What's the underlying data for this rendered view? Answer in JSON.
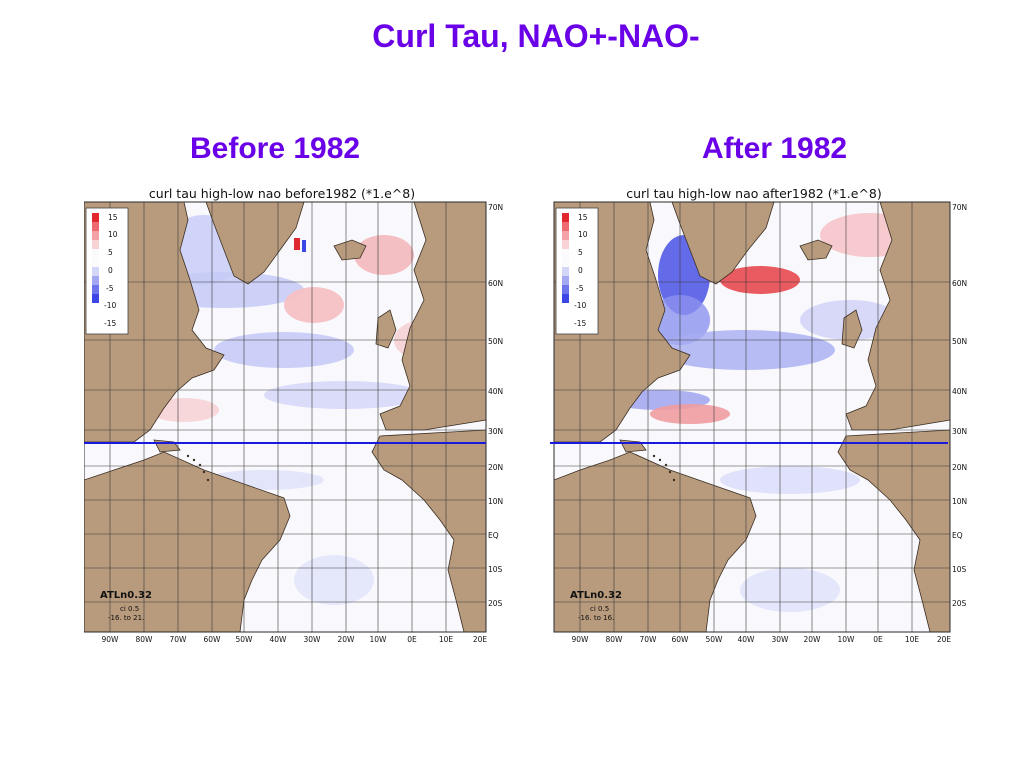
{
  "slide": {
    "title": "Curl Tau, NAO+-NAO-"
  },
  "panels": [
    {
      "heading": "Before 1982",
      "map_title": "curl tau high-low nao before1982 (*1.e^8)",
      "legend": [
        "15",
        "10",
        "5",
        "0",
        "-5",
        "-10",
        "-15"
      ],
      "model_label": "ATLn0.32",
      "contour_interval": "ci 0.5",
      "range": "-16. to 21."
    },
    {
      "heading": "After 1982",
      "map_title": "curl tau high-low nao after1982 (*1.e^8)",
      "legend": [
        "15",
        "10",
        "5",
        "0",
        "-5",
        "-10",
        "-15"
      ],
      "model_label": "ATLn0.32",
      "contour_interval": "ci 0.5",
      "range": "-16. to 16."
    }
  ],
  "lat_labels": [
    "70N",
    "60N",
    "50N",
    "40N",
    "30N",
    "20N",
    "10N",
    "EQ",
    "10S",
    "20S"
  ],
  "lon_labels": [
    "90W",
    "80W",
    "70W",
    "60W",
    "50W",
    "40W",
    "30W",
    "20W",
    "10W",
    "0E",
    "10E",
    "20E"
  ],
  "colors": {
    "heading": "#6a00e8",
    "land": "#b89a7c",
    "positive": "#e8323c",
    "negative": "#3c46e6",
    "marker_line": "#1a1adc"
  }
}
